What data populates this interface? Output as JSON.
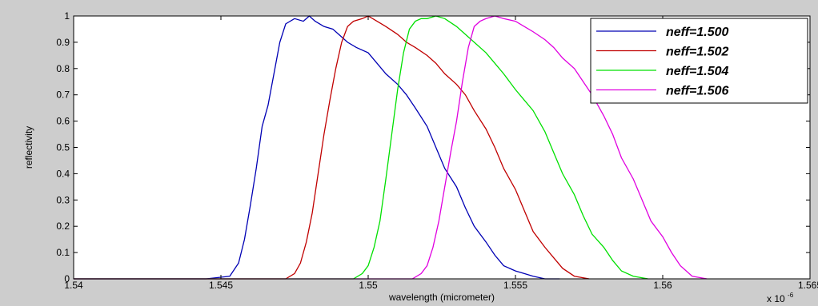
{
  "chart_data": {
    "type": "line",
    "title": "",
    "xlabel": "wavelength (micrometer)",
    "ylabel": "reflectivity",
    "x_multiplier_base": "x 10",
    "x_multiplier_exp": "-6",
    "xlim": [
      1.54,
      1.565
    ],
    "ylim": [
      0,
      1
    ],
    "xticks": [
      1.54,
      1.545,
      1.55,
      1.555,
      1.56,
      1.565
    ],
    "xtick_labels": [
      "1.54",
      "1.545",
      "1.55",
      "1.555",
      "1.56",
      "1.565"
    ],
    "yticks": [
      0,
      0.1,
      0.2,
      0.3,
      0.4,
      0.5,
      0.6,
      0.7,
      0.8,
      0.9,
      1
    ],
    "ytick_labels": [
      "0",
      "0.1",
      "0.2",
      "0.3",
      "0.4",
      "0.5",
      "0.6",
      "0.7",
      "0.8",
      "0.9",
      "1"
    ],
    "grid": false,
    "legend_position": "top-right",
    "series": [
      {
        "name": "neff=1.500",
        "color": "#0000b4",
        "x": [
          1.54,
          1.5445,
          1.5453,
          1.5456,
          1.5458,
          1.546,
          1.5462,
          1.5464,
          1.5466,
          1.5468,
          1.547,
          1.5472,
          1.5475,
          1.5478,
          1.548,
          1.5482,
          1.5485,
          1.5488,
          1.549,
          1.5493,
          1.5496,
          1.55,
          1.5503,
          1.5506,
          1.551,
          1.5513,
          1.5516,
          1.552,
          1.5523,
          1.5526,
          1.553,
          1.5533,
          1.5536,
          1.554,
          1.5543,
          1.5546,
          1.555,
          1.5553,
          1.5556,
          1.556,
          1.5565
        ],
        "y": [
          0,
          0,
          0.01,
          0.06,
          0.15,
          0.28,
          0.42,
          0.58,
          0.66,
          0.78,
          0.9,
          0.97,
          0.99,
          0.98,
          1.0,
          0.98,
          0.96,
          0.95,
          0.93,
          0.9,
          0.88,
          0.86,
          0.82,
          0.78,
          0.74,
          0.7,
          0.65,
          0.58,
          0.5,
          0.42,
          0.35,
          0.27,
          0.2,
          0.14,
          0.09,
          0.05,
          0.03,
          0.02,
          0.01,
          0,
          0
        ]
      },
      {
        "name": "neff=1.502",
        "color": "#c00000",
        "x": [
          1.54,
          1.5472,
          1.5475,
          1.5477,
          1.5479,
          1.5481,
          1.5483,
          1.5485,
          1.5487,
          1.5489,
          1.5491,
          1.5493,
          1.5495,
          1.5498,
          1.55,
          1.5503,
          1.5506,
          1.551,
          1.5513,
          1.5516,
          1.552,
          1.5523,
          1.5526,
          1.553,
          1.5533,
          1.5536,
          1.554,
          1.5543,
          1.5546,
          1.555,
          1.5553,
          1.5556,
          1.556,
          1.5563,
          1.5566,
          1.557,
          1.5575
        ],
        "y": [
          0,
          0,
          0.02,
          0.06,
          0.14,
          0.25,
          0.4,
          0.55,
          0.68,
          0.8,
          0.9,
          0.96,
          0.98,
          0.99,
          1.0,
          0.98,
          0.96,
          0.93,
          0.9,
          0.88,
          0.85,
          0.82,
          0.78,
          0.74,
          0.7,
          0.64,
          0.57,
          0.5,
          0.42,
          0.34,
          0.26,
          0.18,
          0.12,
          0.08,
          0.04,
          0.01,
          0
        ]
      },
      {
        "name": "neff=1.504",
        "color": "#00e000",
        "x": [
          1.54,
          1.5495,
          1.5498,
          1.55,
          1.5502,
          1.5504,
          1.5506,
          1.5508,
          1.551,
          1.5512,
          1.5514,
          1.5516,
          1.5518,
          1.552,
          1.5523,
          1.5526,
          1.553,
          1.5533,
          1.5536,
          1.554,
          1.5543,
          1.5546,
          1.555,
          1.5553,
          1.5556,
          1.556,
          1.5563,
          1.5566,
          1.557,
          1.5573,
          1.5576,
          1.558,
          1.5583,
          1.5586,
          1.559,
          1.5595
        ],
        "y": [
          0,
          0,
          0.02,
          0.05,
          0.12,
          0.22,
          0.38,
          0.55,
          0.72,
          0.86,
          0.95,
          0.98,
          0.99,
          0.99,
          1.0,
          0.99,
          0.96,
          0.93,
          0.9,
          0.86,
          0.82,
          0.78,
          0.72,
          0.68,
          0.64,
          0.56,
          0.48,
          0.4,
          0.32,
          0.24,
          0.17,
          0.12,
          0.07,
          0.03,
          0.01,
          0
        ]
      },
      {
        "name": "neff=1.506",
        "color": "#e000e0",
        "x": [
          1.54,
          1.5515,
          1.5518,
          1.552,
          1.5522,
          1.5524,
          1.5526,
          1.5528,
          1.553,
          1.5532,
          1.5534,
          1.5536,
          1.5538,
          1.554,
          1.5543,
          1.5546,
          1.555,
          1.5553,
          1.5556,
          1.556,
          1.5563,
          1.5566,
          1.557,
          1.5573,
          1.5576,
          1.558,
          1.5583,
          1.5586,
          1.559,
          1.5593,
          1.5596,
          1.56,
          1.5603,
          1.5606,
          1.561,
          1.5615
        ],
        "y": [
          0,
          0,
          0.02,
          0.05,
          0.12,
          0.22,
          0.35,
          0.48,
          0.6,
          0.75,
          0.88,
          0.96,
          0.98,
          0.99,
          1.0,
          0.99,
          0.98,
          0.96,
          0.94,
          0.91,
          0.88,
          0.84,
          0.8,
          0.75,
          0.7,
          0.62,
          0.55,
          0.46,
          0.38,
          0.3,
          0.22,
          0.16,
          0.1,
          0.05,
          0.01,
          0
        ]
      }
    ]
  }
}
